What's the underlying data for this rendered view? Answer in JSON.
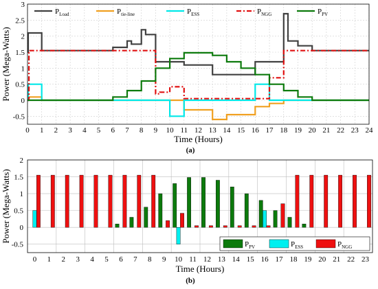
{
  "chart_data": [
    {
      "panel": "a",
      "caption": "(a)",
      "type": "line",
      "xlabel": "Time (Hours)",
      "ylabel": "Power (Mega-Watts)",
      "xlim": [
        0,
        24
      ],
      "ylim": [
        -0.75,
        3
      ],
      "xticks": [
        "0",
        "1",
        "2",
        "3",
        "4",
        "5",
        "6",
        "7",
        "8",
        "9",
        "10",
        "11",
        "12",
        "13",
        "14",
        "15",
        "16",
        "17",
        "18",
        "19",
        "20",
        "21",
        "22",
        "23",
        "24"
      ],
      "yticks": [
        "-0.5",
        "0",
        "0.5",
        "1",
        "1.5",
        "2",
        "2.5",
        "3"
      ],
      "grid": true,
      "step": true,
      "legend_position": "top",
      "series": [
        {
          "name": "P",
          "sub": "Load",
          "color": "#404040",
          "dash": "",
          "x": [
            0,
            0.05,
            0.05,
            1,
            1,
            6,
            6,
            7,
            7,
            7.3,
            7.3,
            8,
            8,
            8.3,
            8.3,
            9,
            9,
            11,
            11,
            13,
            13,
            16,
            16,
            18,
            18,
            18.3,
            18.3,
            19,
            19,
            20,
            20,
            24
          ],
          "y": [
            1.5,
            1.5,
            2.1,
            2.1,
            1.55,
            1.55,
            1.65,
            1.65,
            1.85,
            1.85,
            1.75,
            1.75,
            2.2,
            2.2,
            2.05,
            2.05,
            1.2,
            1.2,
            1.1,
            1.1,
            0.8,
            0.8,
            1.2,
            1.2,
            2.7,
            2.7,
            1.85,
            1.85,
            1.7,
            1.7,
            1.55,
            1.55
          ]
        },
        {
          "name": "P",
          "sub": "tie-line",
          "color": "#f0a020",
          "dash": "",
          "x": [
            0,
            0.05,
            0.05,
            1,
            1,
            11,
            11,
            13,
            13,
            14,
            14,
            16,
            16,
            17,
            17,
            18,
            18,
            24
          ],
          "y": [
            0,
            0,
            0.1,
            0.1,
            0,
            0,
            -0.3,
            -0.3,
            -0.6,
            -0.6,
            -0.45,
            -0.45,
            -0.2,
            -0.2,
            -0.1,
            -0.1,
            0,
            0
          ]
        },
        {
          "name": "P",
          "sub": "ESS",
          "color": "#00e8e8",
          "dash": "",
          "x": [
            0,
            0.05,
            0.05,
            1,
            1,
            10,
            10,
            11,
            11,
            16,
            16,
            17,
            17,
            24
          ],
          "y": [
            0,
            0,
            0.5,
            0.5,
            0,
            0,
            -0.5,
            -0.5,
            0,
            0,
            0.5,
            0.5,
            0,
            0
          ]
        },
        {
          "name": "P",
          "sub": "NGG",
          "color": "#e01010",
          "dash": "7,3,2,3",
          "x": [
            0,
            0.1,
            0.1,
            9,
            9,
            9.3,
            9.3,
            10,
            10,
            10.3,
            10.3,
            11,
            11,
            17,
            17,
            18,
            18,
            24
          ],
          "y": [
            0,
            0,
            1.55,
            1.55,
            0.2,
            0.2,
            0.25,
            0.25,
            0.42,
            0.42,
            0.42,
            0.42,
            0.05,
            0.05,
            0.7,
            0.7,
            1.55,
            1.55
          ]
        },
        {
          "name": "P",
          "sub": "PV",
          "color": "#0c7a0c",
          "dash": "",
          "x": [
            0,
            6,
            6,
            7,
            7,
            8,
            8,
            9,
            9,
            10,
            10,
            11,
            11,
            12,
            12,
            13,
            13,
            14,
            14,
            15,
            15,
            16,
            16,
            17,
            17,
            18,
            18,
            19,
            19,
            20,
            20,
            24
          ],
          "y": [
            0,
            0,
            0.1,
            0.1,
            0.3,
            0.3,
            0.6,
            0.6,
            1.0,
            1.0,
            1.3,
            1.3,
            1.48,
            1.48,
            1.48,
            1.48,
            1.4,
            1.4,
            1.2,
            1.2,
            1.0,
            1.0,
            0.8,
            0.8,
            0.5,
            0.5,
            0.3,
            0.3,
            0.1,
            0.1,
            0,
            0
          ]
        }
      ]
    },
    {
      "panel": "b",
      "caption": "(b)",
      "type": "bar",
      "xlabel": "Time (Hours)",
      "ylabel": "Power (Mega-Watts)",
      "ylim": [
        -0.75,
        2
      ],
      "yticks": [
        "-0.5",
        "0",
        "0.5",
        "1",
        "1.5",
        "2"
      ],
      "grid": true,
      "legend_position": "bottom-right",
      "categories": [
        "0",
        "1",
        "2",
        "3",
        "4",
        "5",
        "6",
        "7",
        "8",
        "9",
        "10",
        "11",
        "12",
        "13",
        "14",
        "15",
        "16",
        "17",
        "18",
        "19",
        "20",
        "21",
        "22",
        "23"
      ],
      "series": [
        {
          "name": "P",
          "sub": "PV",
          "color": "#0c7a0c",
          "values": [
            0,
            0,
            0,
            0,
            0,
            0,
            0.1,
            0.3,
            0.6,
            1.0,
            1.3,
            1.48,
            1.48,
            1.4,
            1.2,
            1.0,
            0.8,
            0.5,
            0.3,
            0.1,
            0,
            0,
            0,
            0
          ]
        },
        {
          "name": "P",
          "sub": "ESS",
          "color": "#00f0f0",
          "values": [
            0.5,
            0,
            0,
            0,
            0,
            0,
            0,
            0,
            0,
            0,
            -0.5,
            0,
            0,
            0,
            0,
            0,
            0.5,
            0,
            0,
            0,
            0,
            0,
            0,
            0
          ]
        },
        {
          "name": "P",
          "sub": "NGG",
          "color": "#ee1010",
          "values": [
            1.55,
            1.55,
            1.55,
            1.55,
            1.55,
            1.55,
            1.55,
            1.55,
            1.55,
            0.2,
            0.42,
            0.05,
            0.05,
            0.05,
            0.05,
            0.05,
            0.05,
            0.7,
            1.55,
            1.55,
            1.55,
            1.55,
            1.55,
            1.55
          ]
        }
      ]
    }
  ]
}
